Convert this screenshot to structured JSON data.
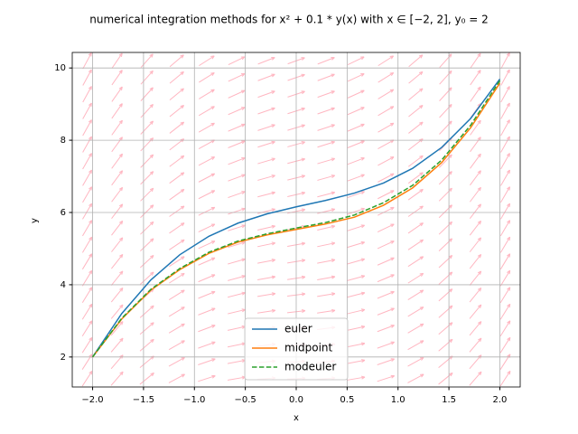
{
  "chart_data": {
    "type": "line",
    "title": "numerical integration methods for x² + 0.1 * y(x) with x ∈ [−2, 2], y₀ = 2",
    "x_label": "x",
    "y_label": "y",
    "x": [
      -2.0,
      -1.7143,
      -1.4286,
      -1.1429,
      -0.8571,
      -0.5714,
      -0.2857,
      0.0,
      0.2857,
      0.5714,
      0.8571,
      1.1429,
      1.4286,
      1.7143,
      2.0
    ],
    "series": [
      {
        "name": "euler",
        "color": "#1f77b4",
        "dash": "solid",
        "values": [
          2.0,
          3.2,
          4.131,
          4.832,
          5.343,
          5.706,
          5.962,
          6.156,
          6.332,
          6.536,
          6.816,
          7.221,
          7.8,
          8.606,
          9.692
        ]
      },
      {
        "name": "midpoint",
        "color": "#ff7f0e",
        "dash": "solid",
        "values": [
          2.0,
          3.05,
          3.85,
          4.42,
          4.87,
          5.18,
          5.38,
          5.53,
          5.68,
          5.87,
          6.2,
          6.68,
          7.38,
          8.35,
          9.58
        ]
      },
      {
        "name": "modeuler",
        "color": "#2ca02c",
        "dash": "dashed",
        "values": [
          2.0,
          3.07,
          3.87,
          4.45,
          4.9,
          5.21,
          5.41,
          5.57,
          5.72,
          5.93,
          6.27,
          6.75,
          7.45,
          8.42,
          9.65
        ]
      }
    ],
    "xlim": [
      -2.2,
      2.2
    ],
    "ylim": [
      1.17,
      10.43
    ],
    "xticks": [
      {
        "value": -2.0,
        "label": "−2.0"
      },
      {
        "value": -1.5,
        "label": "−1.5"
      },
      {
        "value": -1.0,
        "label": "−1.0"
      },
      {
        "value": -0.5,
        "label": "−0.5"
      },
      {
        "value": 0.0,
        "label": "0.0"
      },
      {
        "value": 0.5,
        "label": "0.5"
      },
      {
        "value": 1.0,
        "label": "1.0"
      },
      {
        "value": 1.5,
        "label": "1.5"
      },
      {
        "value": 2.0,
        "label": "2.0"
      }
    ],
    "yticks": [
      2,
      4,
      6,
      8,
      10
    ],
    "grid": true,
    "legend": "lower center"
  }
}
